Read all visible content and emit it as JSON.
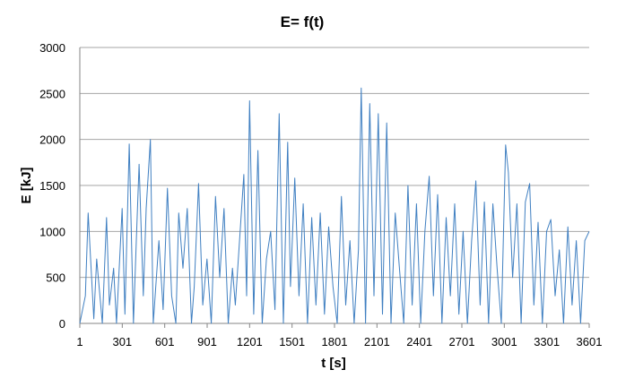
{
  "chart_data": {
    "type": "line",
    "title": "E= f(t)",
    "xlabel": "t [s]",
    "ylabel": "E [kJ]",
    "xlim": [
      1,
      3601
    ],
    "ylim": [
      0,
      3000
    ],
    "x_ticks": [
      1,
      301,
      601,
      901,
      1201,
      1501,
      1801,
      2101,
      2401,
      2701,
      3001,
      3301,
      3601
    ],
    "x_tick_labels": [
      "1",
      "301",
      "601",
      "901",
      "1201",
      "1501",
      "1801",
      "2101",
      "2401",
      "2701",
      "3001",
      "3301",
      "3601"
    ],
    "y_ticks": [
      0,
      500,
      1000,
      1500,
      2000,
      2500,
      3000
    ],
    "y_tick_labels": [
      "0",
      "500",
      "1000",
      "1500",
      "2000",
      "2500",
      "3000"
    ],
    "grid": "horizontal",
    "legend": "none",
    "line_color": "#3f7fc1",
    "grid_color": "#a6a6a6",
    "series": [
      {
        "x": [
          1,
          40,
          60,
          100,
          120,
          160,
          190,
          210,
          240,
          260,
          300,
          320,
          350,
          380,
          400,
          420,
          450,
          470,
          500,
          520,
          560,
          590,
          620,
          650,
          680,
          700,
          730,
          760,
          790,
          810,
          840,
          870,
          900,
          930,
          960,
          990,
          1020,
          1050,
          1080,
          1100,
          1130,
          1160,
          1180,
          1201,
          1230,
          1260,
          1290,
          1320,
          1350,
          1380,
          1410,
          1440,
          1470,
          1490,
          1520,
          1550,
          1580,
          1610,
          1640,
          1670,
          1700,
          1730,
          1760,
          1790,
          1820,
          1850,
          1880,
          1910,
          1940,
          1970,
          1990,
          2020,
          2050,
          2080,
          2110,
          2140,
          2170,
          2200,
          2230,
          2260,
          2290,
          2320,
          2350,
          2380,
          2410,
          2440,
          2470,
          2500,
          2530,
          2560,
          2590,
          2620,
          2650,
          2680,
          2710,
          2740,
          2770,
          2800,
          2830,
          2860,
          2890,
          2920,
          2950,
          2980,
          3010,
          3030,
          3060,
          3090,
          3120,
          3150,
          3180,
          3210,
          3240,
          3270,
          3300,
          3330,
          3360,
          3390,
          3420,
          3450,
          3480,
          3510,
          3540,
          3570,
          3601
        ],
        "y": [
          0,
          300,
          1200,
          50,
          700,
          0,
          1150,
          200,
          600,
          0,
          1250,
          100,
          1950,
          0,
          900,
          1730,
          300,
          1250,
          2000,
          0,
          900,
          150,
          1470,
          300,
          0,
          1200,
          600,
          1250,
          0,
          400,
          1520,
          200,
          700,
          0,
          1380,
          500,
          1250,
          0,
          600,
          200,
          900,
          1620,
          300,
          2420,
          100,
          1880,
          0,
          700,
          1000,
          150,
          2280,
          0,
          1970,
          400,
          1580,
          300,
          1300,
          0,
          1150,
          200,
          1200,
          100,
          1050,
          400,
          0,
          1380,
          200,
          900,
          0,
          800,
          2560,
          0,
          2390,
          300,
          2280,
          100,
          2180,
          0,
          1200,
          600,
          0,
          1500,
          200,
          1300,
          0,
          1000,
          1600,
          300,
          1400,
          0,
          1150,
          300,
          1300,
          100,
          1000,
          0,
          900,
          1550,
          200,
          1320,
          0,
          1300,
          600,
          0,
          1940,
          1640,
          500,
          1300,
          0,
          1320,
          1520,
          200,
          1100,
          0,
          1000,
          1130,
          300,
          800,
          0,
          1050,
          200,
          900,
          0,
          900,
          1000
        ]
      }
    ]
  }
}
